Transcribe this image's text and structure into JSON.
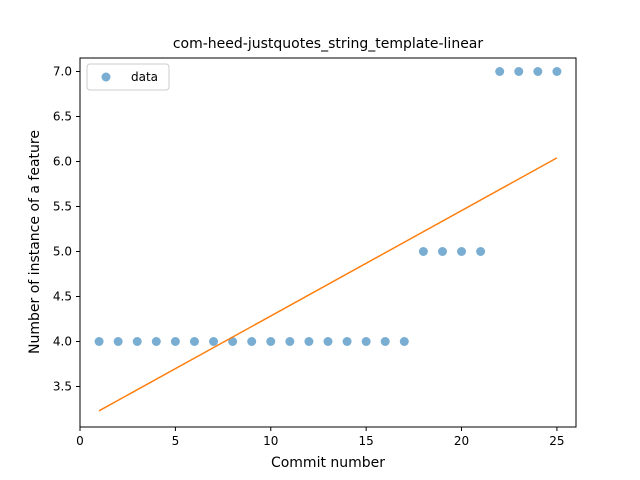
{
  "chart_data": {
    "type": "scatter",
    "title": "com-heed-justquotes_string_template-linear",
    "xlabel": "Commit number",
    "ylabel": "Number of instance of a feature",
    "xlim": [
      0,
      26
    ],
    "ylim": [
      3.05,
      7.15
    ],
    "xticks": [
      0,
      5,
      10,
      15,
      20,
      25
    ],
    "yticks": [
      3.5,
      4.0,
      4.5,
      5.0,
      5.5,
      6.0,
      6.5,
      7.0
    ],
    "grid": false,
    "legend": {
      "position": "top-left",
      "entries": [
        "data"
      ]
    },
    "series": [
      {
        "name": "data",
        "kind": "scatter",
        "color": "#1f77b4",
        "x": [
          1,
          2,
          3,
          4,
          5,
          6,
          7,
          8,
          9,
          10,
          11,
          12,
          13,
          14,
          15,
          16,
          17,
          18,
          19,
          20,
          21,
          22,
          23,
          24,
          25
        ],
        "y": [
          4,
          4,
          4,
          4,
          4,
          4,
          4,
          4,
          4,
          4,
          4,
          4,
          4,
          4,
          4,
          4,
          4,
          5,
          5,
          5,
          5,
          7,
          7,
          7,
          7
        ]
      },
      {
        "kind": "line",
        "color": "#ff7f0e",
        "x": [
          1,
          25
        ],
        "y": [
          3.23,
          6.04
        ]
      }
    ]
  }
}
